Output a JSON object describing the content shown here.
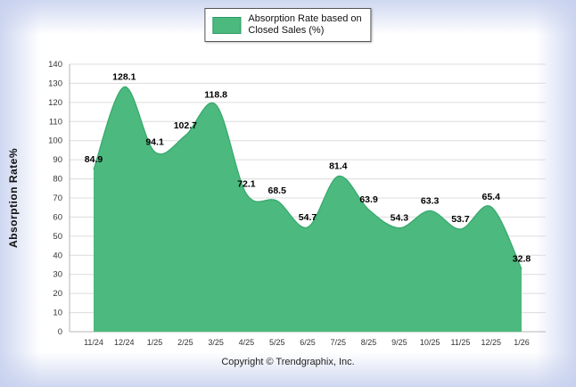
{
  "chart_data": {
    "type": "area",
    "categories": [
      "11/24",
      "12/24",
      "1/25",
      "2/25",
      "3/25",
      "4/25",
      "5/25",
      "6/25",
      "7/25",
      "8/25",
      "9/25",
      "10/25",
      "11/25",
      "12/25",
      "1/26"
    ],
    "values": [
      84.9,
      128.1,
      94.1,
      102.7,
      118.8,
      72.1,
      68.5,
      54.7,
      81.4,
      63.9,
      54.3,
      63.3,
      53.7,
      65.4,
      32.8
    ],
    "title": "",
    "xlabel": "",
    "ylabel": "Absorption Rate%",
    "ylim": [
      0,
      140
    ],
    "ytick_step": 10,
    "grid": true,
    "legend_position": "top-center",
    "series_name": "Absorption Rate based on Closed Sales (%)"
  },
  "legend": {
    "line1": "Absorption Rate based on",
    "line2": "Closed Sales (%)"
  },
  "footer": {
    "copyright": "Copyright © Trendgraphix, Inc."
  },
  "colors": {
    "area_fill": "#4cb97e",
    "area_stroke": "#35a86d",
    "swatch_border": "#2c9a63",
    "grid_line": "#dcdcdc",
    "axis_line": "#b5b5b5",
    "tick_text": "#333333",
    "value_label": "#000000"
  }
}
